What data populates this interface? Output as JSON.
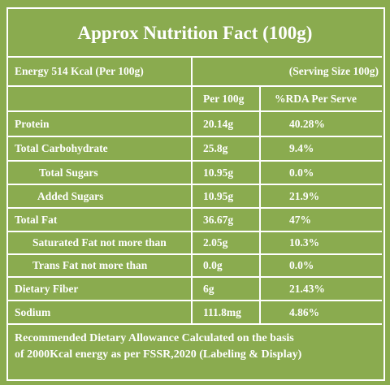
{
  "title": "Approx Nutrition Fact (100g)",
  "energy_row": {
    "left": "Energy 514 Kcal (Per 100g)",
    "right": "(Serving Size 100g)"
  },
  "header": [
    "Per 100g",
    "%RDA Per Serve"
  ],
  "rows": [
    [
      "Protein",
      "20.14g",
      "40.28%"
    ],
    [
      "Total Carbohydrate",
      "25.8g",
      "9.4%"
    ],
    [
      "Total Sugars",
      "10.95g",
      "0.0%"
    ],
    [
      "Added Sugars",
      "10.95g",
      "21.9%"
    ],
    [
      "Total Fat",
      "36.67g",
      "47%"
    ],
    [
      "Saturated Fat not more than",
      "2.05g",
      "10.3%"
    ],
    [
      "Trans Fat not more than",
      "0.0g",
      "0.0%"
    ],
    [
      "Dietary Fiber",
      "6g",
      "21.43%"
    ],
    [
      "Sodium",
      "111.8mg",
      "4.86%"
    ]
  ],
  "footer": [
    "Recommended Dietary Allowance Calculated on the basis",
    "of 2000Kcal energy as per FSSR,2020 (Labeling & Display)"
  ]
}
